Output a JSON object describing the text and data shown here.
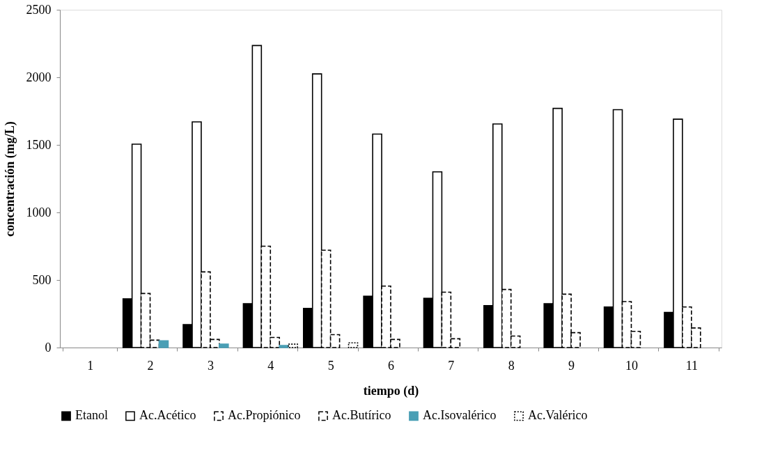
{
  "chart_data": {
    "type": "bar",
    "xlabel": "tiempo (d)",
    "ylabel": "concentración (mg/L)",
    "categories": [
      "1",
      "2",
      "3",
      "4",
      "5",
      "6",
      "7",
      "8",
      "9",
      "10",
      "11"
    ],
    "ylim": [
      0,
      2500
    ],
    "yticks": [
      0,
      500,
      1000,
      1500,
      2000,
      2500
    ],
    "grid": false,
    "legend": "bottom",
    "series": [
      {
        "name": "Etanol",
        "color": "#000000",
        "line_style": "solid",
        "values": [
          null,
          360,
          170,
          325,
          290,
          380,
          365,
          310,
          325,
          300,
          260
        ]
      },
      {
        "name": "Ac.Acético",
        "color": "#ffffff",
        "line_style": "solid",
        "values": [
          null,
          1505,
          1670,
          2235,
          2025,
          1580,
          1300,
          1655,
          1770,
          1760,
          1690
        ]
      },
      {
        "name": "Ac.Propiónico",
        "color": "#ffffff",
        "line_style": "dashed",
        "values": [
          null,
          400,
          560,
          750,
          720,
          455,
          410,
          430,
          395,
          340,
          300
        ]
      },
      {
        "name": "Ac.Butírico",
        "color": "#ffffff",
        "line_style": "dashed",
        "values": [
          null,
          55,
          60,
          75,
          95,
          60,
          65,
          85,
          110,
          120,
          145
        ]
      },
      {
        "name": "Ac.Isovalérico",
        "color": "#4a9fb5",
        "line_style": "solid",
        "values": [
          null,
          50,
          25,
          15,
          null,
          null,
          null,
          null,
          null,
          null,
          null
        ]
      },
      {
        "name": "Ac.Valérico",
        "color": "#ffffff",
        "line_style": "dotted",
        "values": [
          null,
          null,
          null,
          25,
          35,
          null,
          null,
          null,
          null,
          null,
          null
        ]
      }
    ]
  }
}
